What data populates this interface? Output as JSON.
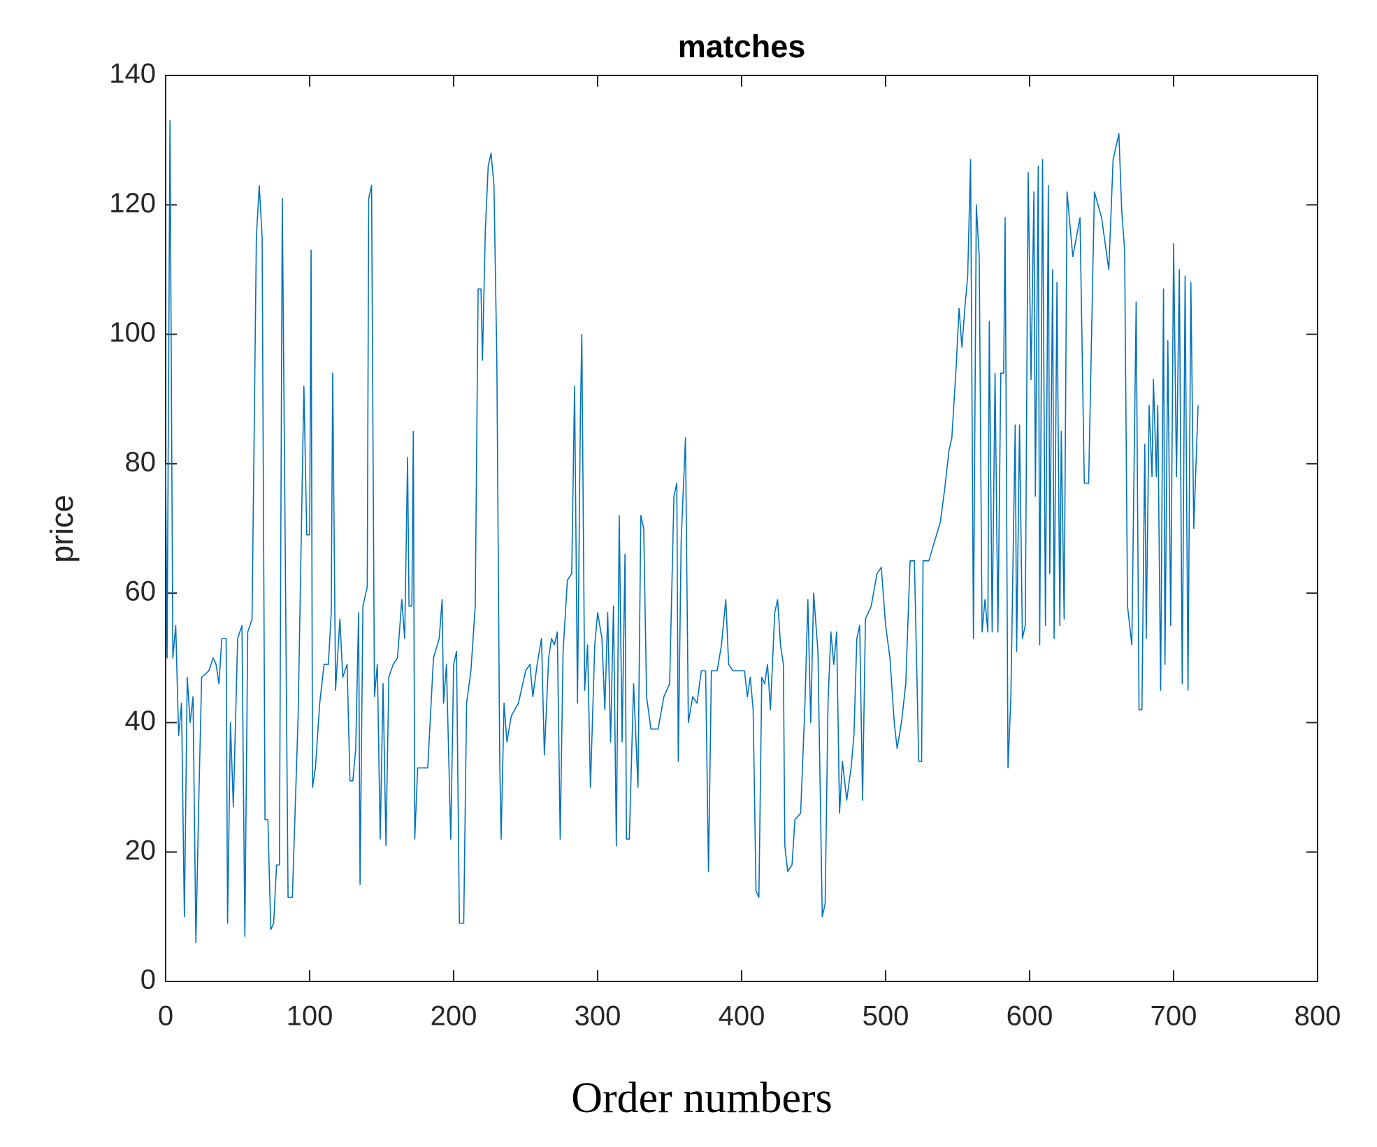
{
  "chart_data": {
    "type": "line",
    "title": "matches",
    "x_label": "Order numbers",
    "y_label": "price",
    "color": "#0072bd",
    "xlim": [
      0,
      800
    ],
    "ylim": [
      0,
      140
    ],
    "xticks": [
      0,
      100,
      200,
      300,
      400,
      500,
      600,
      700,
      800
    ],
    "yticks": [
      0,
      20,
      40,
      60,
      80,
      100,
      120,
      140
    ],
    "x": [
      0,
      1,
      3,
      5,
      7,
      9,
      11,
      13,
      15,
      17,
      19,
      21,
      23,
      25,
      30,
      33,
      35,
      37,
      39,
      42,
      43,
      45,
      47,
      50,
      53,
      55,
      57,
      60,
      63,
      65,
      67,
      69,
      71,
      73,
      75,
      77,
      79,
      81,
      83,
      85,
      88,
      92,
      96,
      98,
      100,
      101,
      102,
      104,
      107,
      110,
      113,
      115,
      116,
      118,
      121,
      123,
      126,
      128,
      130,
      132,
      134,
      135,
      137,
      140,
      141,
      143,
      145,
      147,
      149,
      151,
      153,
      155,
      158,
      161,
      164,
      166,
      168,
      169,
      171,
      172,
      173,
      175,
      178,
      182,
      186,
      190,
      192,
      193,
      195,
      198,
      200,
      202,
      204,
      207,
      209,
      212,
      215,
      217,
      219,
      220,
      222,
      224,
      226,
      228,
      230,
      232,
      233,
      235,
      237,
      240,
      245,
      250,
      253,
      255,
      258,
      261,
      263,
      266,
      268,
      270,
      272,
      274,
      276,
      279,
      282,
      284,
      286,
      288,
      289,
      291,
      293,
      295,
      298,
      300,
      303,
      305,
      307,
      309,
      311,
      313,
      315,
      317,
      319,
      320,
      322,
      325,
      328,
      330,
      332,
      334,
      337,
      342,
      346,
      350,
      353,
      355,
      356,
      358,
      361,
      363,
      366,
      369,
      372,
      375,
      377,
      379,
      383,
      386,
      389,
      391,
      394,
      398,
      402,
      404,
      406,
      408,
      410,
      412,
      414,
      416,
      418,
      420,
      423,
      425,
      427,
      429,
      430,
      432,
      435,
      437,
      441,
      444,
      446,
      448,
      450,
      453,
      456,
      458,
      460,
      462,
      464,
      466,
      468,
      470,
      473,
      476,
      478,
      480,
      482,
      484,
      486,
      490,
      494,
      497,
      500,
      503,
      506,
      508,
      511,
      514,
      517,
      520,
      523,
      525,
      526,
      530,
      534,
      538,
      541,
      544,
      546,
      549,
      551,
      553,
      555,
      557,
      559,
      561,
      563,
      565,
      567,
      569,
      571,
      572,
      574,
      576,
      578,
      580,
      582,
      583,
      585,
      587,
      590,
      591,
      593,
      595,
      597,
      599,
      601,
      603,
      604,
      606,
      607,
      609,
      611,
      613,
      614,
      616,
      617,
      619,
      621,
      622,
      624,
      626,
      630,
      635,
      638,
      641,
      645,
      650,
      655,
      658,
      662,
      664,
      666,
      668,
      671,
      674,
      676,
      678,
      680,
      681,
      683,
      685,
      686,
      688,
      689,
      691,
      693,
      694,
      696,
      698,
      700,
      702,
      704,
      706,
      708,
      710,
      712,
      714,
      717
    ],
    "values": [
      80,
      50,
      133,
      50,
      55,
      38,
      43,
      10,
      47,
      40,
      44,
      6,
      28,
      47,
      48,
      50,
      49,
      46,
      53,
      53,
      9,
      40,
      27,
      53,
      55,
      7,
      54,
      56,
      115,
      123,
      115,
      25,
      25,
      8,
      9,
      18,
      18,
      121,
      68,
      13,
      13,
      41,
      92,
      69,
      69,
      113,
      30,
      33,
      43,
      49,
      49,
      57,
      94,
      45,
      56,
      47,
      49,
      31,
      31,
      36,
      57,
      15,
      58,
      61,
      121,
      123,
      44,
      49,
      22,
      46,
      21,
      47,
      49,
      50,
      59,
      53,
      81,
      58,
      58,
      85,
      22,
      33,
      33,
      33,
      50,
      53,
      59,
      43,
      49,
      22,
      49,
      51,
      9,
      9,
      43,
      48,
      58,
      107,
      107,
      96,
      116,
      126,
      128,
      123,
      96,
      34,
      22,
      43,
      37,
      41,
      43,
      48,
      49,
      44,
      49,
      53,
      35,
      50,
      53,
      52,
      54,
      22,
      51,
      62,
      63,
      92,
      43,
      87,
      100,
      45,
      52,
      30,
      52,
      57,
      53,
      42,
      57,
      37,
      58,
      21,
      72,
      37,
      66,
      22,
      22,
      46,
      30,
      72,
      70,
      44,
      39,
      39,
      44,
      46,
      75,
      77,
      34,
      68,
      84,
      40,
      44,
      43,
      48,
      48,
      17,
      48,
      48,
      52,
      59,
      49,
      48,
      48,
      48,
      44,
      47,
      42,
      14,
      13,
      47,
      46,
      49,
      42,
      57,
      59,
      52,
      49,
      21,
      17,
      18,
      25,
      26,
      43,
      59,
      40,
      60,
      51,
      10,
      12,
      43,
      54,
      49,
      54,
      26,
      34,
      28,
      33,
      38,
      53,
      55,
      28,
      56,
      58,
      63,
      64,
      55,
      50,
      40,
      36,
      40,
      46,
      65,
      65,
      34,
      34,
      65,
      65,
      68,
      71,
      76,
      82,
      84,
      95,
      104,
      98,
      104,
      109,
      127,
      53,
      120,
      112,
      54,
      59,
      54,
      102,
      54,
      94,
      54,
      94,
      94,
      118,
      33,
      44,
      86,
      51,
      86,
      53,
      55,
      125,
      93,
      122,
      75,
      126,
      52,
      127,
      55,
      123,
      63,
      110,
      53,
      108,
      55,
      85,
      56,
      122,
      112,
      118,
      77,
      77,
      122,
      118,
      110,
      127,
      131,
      119,
      113,
      58,
      52,
      105,
      42,
      42,
      83,
      53,
      89,
      78,
      93,
      78,
      89,
      45,
      107,
      49,
      99,
      55,
      114,
      78,
      110,
      46,
      109,
      45,
      108,
      70,
      89
    ]
  }
}
